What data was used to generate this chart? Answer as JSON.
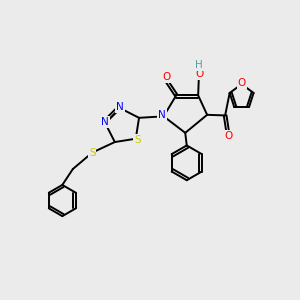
{
  "bg_color": "#ebebeb",
  "bond_color": "#000000",
  "bond_width": 1.4,
  "atom_colors": {
    "N": "#0000ff",
    "O": "#ff0000",
    "S": "#cccc00",
    "H_label": "#5a9ea0",
    "C": "#000000"
  },
  "font_size_atom": 7.5
}
